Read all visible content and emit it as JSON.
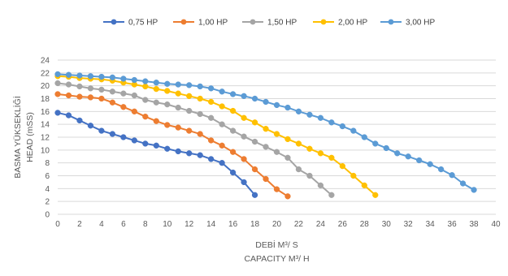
{
  "chart_data": {
    "type": "line",
    "xlabel_lines": [
      "DEBİ M³/ S",
      "CAPACITY M³/ H"
    ],
    "ylabel_lines": [
      "BASMA YÜKSEKLİĞİ",
      "HEAD (mSS)"
    ],
    "xlim": [
      0,
      40
    ],
    "ylim": [
      0,
      24
    ],
    "x_ticks": [
      0,
      2,
      4,
      6,
      8,
      10,
      12,
      14,
      16,
      18,
      20,
      22,
      24,
      26,
      28,
      30,
      32,
      34,
      36,
      38,
      40
    ],
    "y_ticks": [
      0,
      2,
      4,
      6,
      8,
      10,
      12,
      14,
      16,
      18,
      20,
      22,
      24
    ],
    "grid": "horizontal",
    "legend_position": "top",
    "series": [
      {
        "name": "0,75 HP",
        "color": "#4472c4",
        "x": [
          0,
          1,
          2,
          3,
          4,
          5,
          6,
          7,
          8,
          9,
          10,
          11,
          12,
          13,
          14,
          15,
          16,
          17,
          18
        ],
        "y": [
          15.8,
          15.4,
          14.6,
          13.8,
          13.0,
          12.5,
          12.0,
          11.5,
          11.0,
          10.7,
          10.2,
          9.8,
          9.5,
          9.2,
          8.6,
          8.0,
          6.5,
          5.0,
          3.0
        ]
      },
      {
        "name": "1,00 HP",
        "color": "#ed7d31",
        "x": [
          0,
          1,
          2,
          3,
          4,
          5,
          6,
          7,
          8,
          9,
          10,
          11,
          12,
          13,
          14,
          15,
          16,
          17,
          18,
          19,
          20,
          21
        ],
        "y": [
          18.7,
          18.5,
          18.3,
          18.2,
          18.0,
          17.4,
          16.7,
          16.0,
          15.2,
          14.5,
          13.9,
          13.5,
          13.0,
          12.5,
          11.5,
          10.7,
          9.7,
          8.6,
          7.0,
          5.5,
          3.9,
          2.8
        ]
      },
      {
        "name": "1,50 HP",
        "color": "#a5a5a5",
        "x": [
          0,
          1,
          2,
          3,
          4,
          5,
          6,
          7,
          8,
          9,
          10,
          11,
          12,
          13,
          14,
          15,
          16,
          17,
          18,
          19,
          20,
          21,
          22,
          23,
          24,
          25
        ],
        "y": [
          20.4,
          20.2,
          19.9,
          19.6,
          19.4,
          19.1,
          18.8,
          18.5,
          17.8,
          17.4,
          17.1,
          16.6,
          16.1,
          15.6,
          15.0,
          14.0,
          13.0,
          12.1,
          11.3,
          10.5,
          9.7,
          8.8,
          7.0,
          6.0,
          4.5,
          3.0
        ]
      },
      {
        "name": "2,00 HP",
        "color": "#ffc000",
        "x": [
          0,
          1,
          2,
          3,
          4,
          5,
          6,
          7,
          8,
          9,
          10,
          11,
          12,
          13,
          14,
          15,
          16,
          17,
          18,
          19,
          20,
          21,
          22,
          23,
          24,
          25,
          26,
          27,
          28,
          29
        ],
        "y": [
          21.5,
          21.4,
          21.2,
          21.1,
          21.0,
          20.8,
          20.5,
          20.2,
          19.9,
          19.5,
          19.2,
          18.8,
          18.4,
          18.0,
          17.5,
          16.8,
          16.1,
          15.0,
          14.3,
          13.3,
          12.5,
          11.7,
          11.0,
          10.2,
          9.5,
          8.8,
          7.5,
          6.0,
          4.5,
          3.0
        ]
      },
      {
        "name": "3,00 HP",
        "color": "#5b9bd5",
        "x": [
          0,
          1,
          2,
          3,
          4,
          5,
          6,
          7,
          8,
          9,
          10,
          11,
          12,
          13,
          14,
          15,
          16,
          17,
          18,
          19,
          20,
          21,
          22,
          23,
          24,
          25,
          26,
          27,
          28,
          29,
          30,
          31,
          32,
          33,
          34,
          35,
          36,
          37,
          38
        ],
        "y": [
          21.8,
          21.7,
          21.6,
          21.5,
          21.4,
          21.3,
          21.1,
          20.9,
          20.7,
          20.5,
          20.3,
          20.2,
          20.1,
          19.9,
          19.6,
          19.1,
          18.7,
          18.4,
          18.0,
          17.5,
          17.0,
          16.6,
          16.0,
          15.5,
          15.0,
          14.3,
          13.7,
          13.0,
          12.0,
          11.0,
          10.3,
          9.5,
          9.0,
          8.4,
          7.8,
          7.0,
          6.1,
          4.8,
          3.8
        ]
      }
    ]
  }
}
